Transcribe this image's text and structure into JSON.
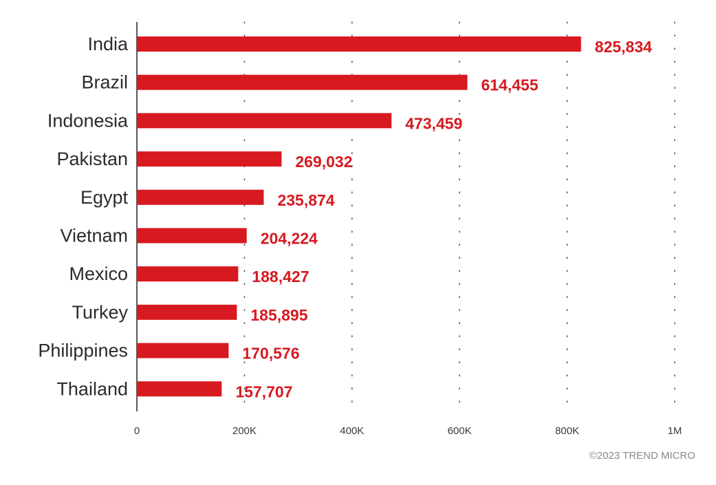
{
  "chart_data": {
    "type": "bar",
    "orientation": "horizontal",
    "categories": [
      "India",
      "Brazil",
      "Indonesia",
      "Pakistan",
      "Egypt",
      "Vietnam",
      "Mexico",
      "Turkey",
      "Philippines",
      "Thailand"
    ],
    "values": [
      825834,
      614455,
      473459,
      269032,
      235874,
      204224,
      188427,
      185895,
      170576,
      157707
    ],
    "value_labels": [
      "825,834",
      "614,455",
      "473,459",
      "269,032",
      "235,874",
      "204,224",
      "188,427",
      "185,895",
      "170,576",
      "157,707"
    ],
    "xlim": [
      0,
      1000000
    ],
    "x_ticks": [
      0,
      200000,
      400000,
      600000,
      800000,
      1000000
    ],
    "x_tick_labels": [
      "0",
      "200K",
      "400K",
      "600K",
      "800K",
      "1M"
    ],
    "grid": "vertical dotted",
    "bar_color": "#d71920",
    "label_color": "#d71920"
  },
  "credit": "©2023 TREND MICRO"
}
